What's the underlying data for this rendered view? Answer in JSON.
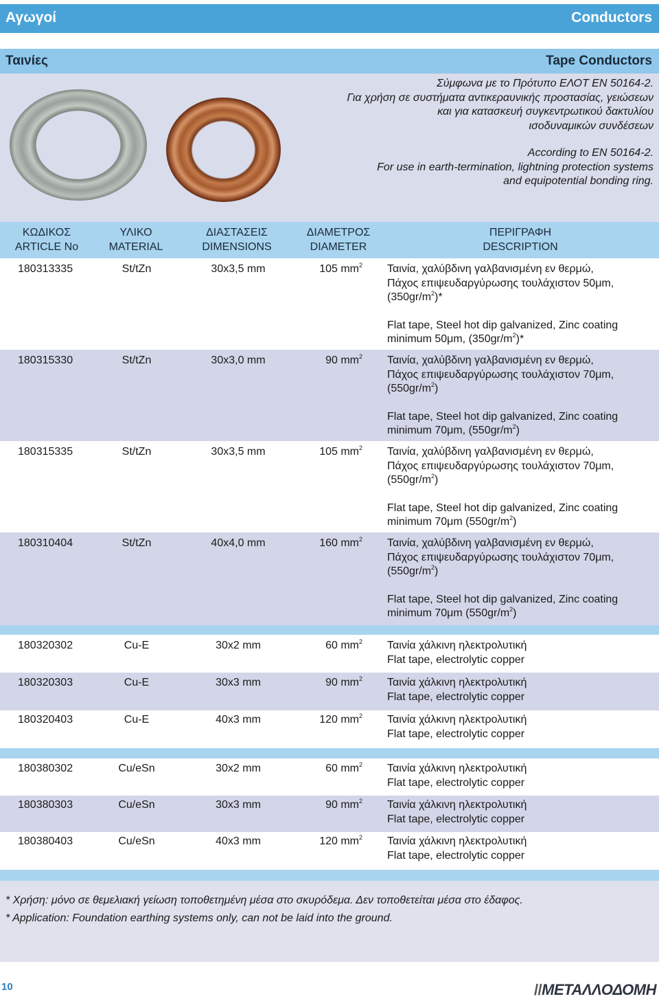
{
  "header": {
    "left_title": "Αγωγοί",
    "right_title": "Conductors"
  },
  "section": {
    "left_title": "Ταινίες",
    "right_title": "Tape Conductors"
  },
  "intro": {
    "greek_lines": [
      "Σύμφωνα με το Πρότυπο ΕΛΟΤ ΕΝ 50164-2.",
      "Για χρήση σε συστήματα αντικεραυνικής προστασίας, γειώσεων",
      "και για κατασκευή συγκεντρωτικού δακτυλίου",
      "ισοδυναμικών συνδέσεων"
    ],
    "english_lines": [
      "According to EN 50164-2.",
      "For use in earth-termination, lightning protection systems",
      "and equipotential bonding ring."
    ]
  },
  "table_header": {
    "code": [
      "ΚΩΔΙΚΟΣ",
      "ARTICLE No"
    ],
    "material": [
      "ΥΛΙΚΟ",
      "MATERIAL"
    ],
    "dimensions": [
      "ΔΙΑΣΤΑΣΕΙΣ",
      "DIMENSIONS"
    ],
    "diameter": [
      "ΔΙΑΜΕΤΡΟΣ",
      "DIAMETER"
    ],
    "description": [
      "ΠΕΡΙΓΡΑΦΗ",
      "DESCRIPTION"
    ]
  },
  "rows": [
    {
      "code": "180313335",
      "material": "St/tZn",
      "dims": "30x3,5 mm",
      "dia": "105 mm",
      "sup": "2",
      "desc_el": [
        "Ταινία, χαλύβδινη γαλβανισμένη εν θερμώ,",
        "Πάχος επιψευδαργύρωσης τουλάχιστον 50μm,",
        "(350gr/m",
        "2",
        ")*"
      ],
      "desc_en": [
        "Flat tape, Steel hot dip galvanized, Zinc coating",
        "minimum 50μm, (350gr/m",
        "2",
        ")*"
      ]
    },
    {
      "code": "180315330",
      "material": "St/tZn",
      "dims": "30x3,0 mm",
      "dia": "90 mm",
      "sup": "2",
      "desc_el": [
        "Ταινία, χαλύβδινη γαλβανισμένη εν θερμώ,",
        "Πάχος επιψευδαργύρωσης τουλάχιστον 70μm,",
        "(550gr/m",
        "2",
        ")"
      ],
      "desc_en": [
        "Flat tape, Steel hot dip galvanized, Zinc coating",
        "minimum 70μm, (550gr/m",
        "2",
        ")"
      ]
    },
    {
      "code": "180315335",
      "material": "St/tZn",
      "dims": "30x3,5 mm",
      "dia": "105 mm",
      "sup": "2",
      "desc_el": [
        "Ταινία, χαλύβδινη γαλβανισμένη εν θερμώ,",
        "Πάχος επιψευδαργύρωσης τουλάχιστον 70μm,",
        "(550gr/m",
        "2",
        ")"
      ],
      "desc_en": [
        "Flat tape, Steel hot dip galvanized, Zinc coating",
        "minimum 70μm (550gr/m",
        "2",
        ")"
      ]
    },
    {
      "code": "180310404",
      "material": "St/tZn",
      "dims": "40x4,0 mm",
      "dia": "160 mm",
      "sup": "2",
      "desc_el": [
        "Ταινία, χαλύβδινη γαλβανισμένη εν θερμώ,",
        "Πάχος επιψευδαργύρωσης τουλάχιστον 70μm,",
        "(550gr/m",
        "2",
        ")"
      ],
      "desc_en": [
        "Flat tape, Steel hot dip galvanized, Zinc coating",
        "minimum 70μm (550gr/m",
        "2",
        ")"
      ]
    }
  ],
  "copper_rows": [
    {
      "code": "180320302",
      "material": "Cu-E",
      "dims": "30x2 mm",
      "dia": "60 mm",
      "sup": "2",
      "desc": [
        "Ταινία χάλκινη ηλεκτρολυτική",
        "Flat tape, electrolytic copper"
      ]
    },
    {
      "code": "180320303",
      "material": "Cu-E",
      "dims": "30x3 mm",
      "dia": "90 mm",
      "sup": "2",
      "desc": [
        "Ταινία χάλκινη ηλεκτρολυτική",
        "Flat tape, electrolytic copper"
      ]
    },
    {
      "code": "180320403",
      "material": "Cu-E",
      "dims": "40x3 mm",
      "dia": "120 mm",
      "sup": "2",
      "desc": [
        "Ταινία χάλκινη ηλεκτρολυτική",
        "Flat tape, electrolytic copper"
      ]
    }
  ],
  "tinned_rows": [
    {
      "code": "180380302",
      "material": "Cu/eSn",
      "dims": "30x2 mm",
      "dia": "60 mm",
      "sup": "2",
      "desc": [
        "Ταινία χάλκινη ηλεκτρολυτική",
        "Flat tape, electrolytic copper"
      ]
    },
    {
      "code": "180380303",
      "material": "Cu/eSn",
      "dims": "30x3 mm",
      "dia": "90 mm",
      "sup": "2",
      "desc": [
        "Ταινία χάλκινη ηλεκτρολυτική",
        "Flat tape, electrolytic copper"
      ]
    },
    {
      "code": "180380403",
      "material": "Cu/eSn",
      "dims": "40x3 mm",
      "dia": "120 mm",
      "sup": "2",
      "desc": [
        "Ταινία χάλκινη ηλεκτρολυτική",
        "Flat tape, electrolytic copper"
      ]
    }
  ],
  "notes": {
    "greek": "* Χρήση:  μόνο σε θεμελιακή γείωση τοποθετημένη μέσα στο σκυρόδεμα. Δεν τοποθετείται μέσα στο έδαφος.",
    "english": "* Application: Foundation earthing systems only, can not be laid into the ground."
  },
  "footer": {
    "page_number": "10",
    "brand": "ΜΕΤΑΛΛΟΔΟΜΗ"
  },
  "colors": {
    "header_blue": "#4aa3d8",
    "section_blue": "#8fc8ea",
    "table_head": "#a9d4ef",
    "row_band": "#d3d6e8",
    "intro_bg": "#d9dceb"
  }
}
